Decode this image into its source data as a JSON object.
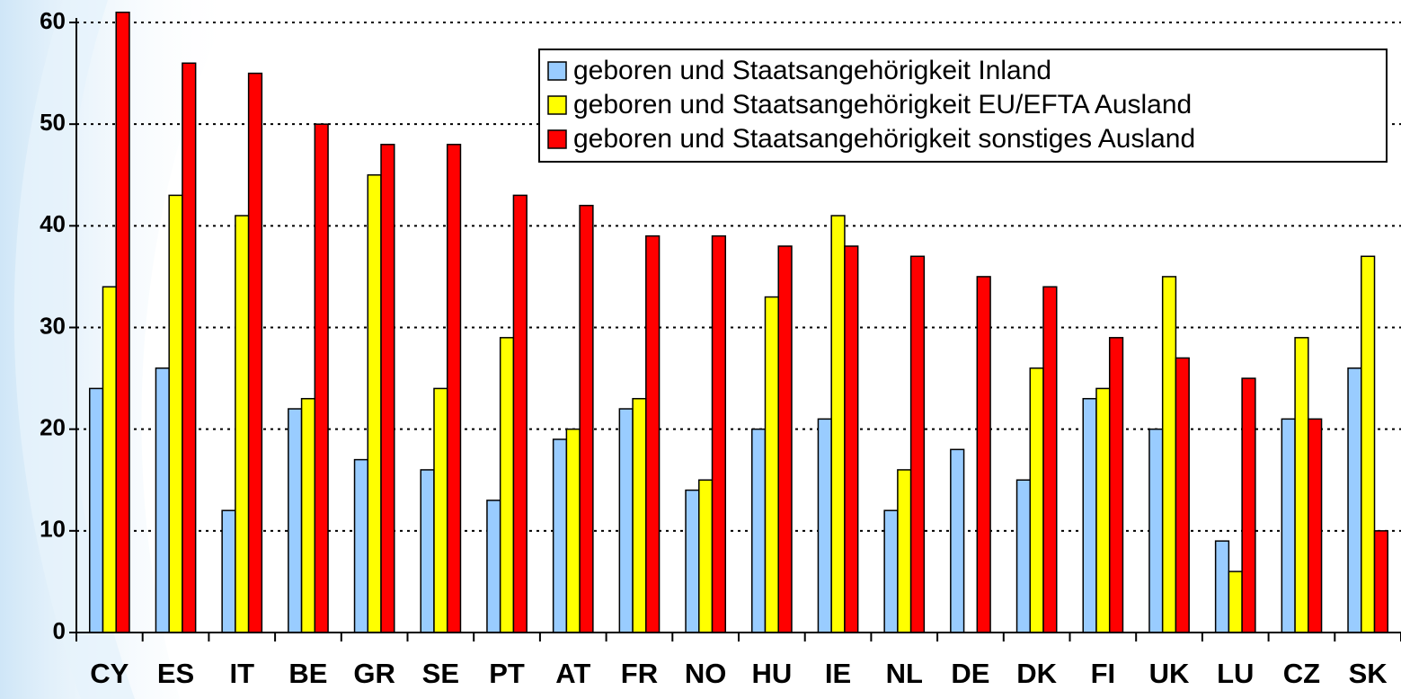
{
  "chart_data": {
    "type": "bar",
    "categories": [
      "CY",
      "ES",
      "IT",
      "BE",
      "GR",
      "SE",
      "PT",
      "AT",
      "FR",
      "NO",
      "HU",
      "IE",
      "NL",
      "DE",
      "DK",
      "FI",
      "UK",
      "LU",
      "CZ",
      "SK"
    ],
    "series": [
      {
        "name": "geboren und Staatsangehörigkeit Inland",
        "color": "#99ccff",
        "values": [
          24,
          26,
          12,
          22,
          17,
          16,
          13,
          19,
          22,
          14,
          20,
          21,
          12,
          18,
          15,
          23,
          20,
          9,
          21,
          26
        ]
      },
      {
        "name": "geboren und Staatsangehörigkeit EU/EFTA Ausland",
        "color": "#ffff00",
        "values": [
          34,
          43,
          41,
          23,
          45,
          24,
          29,
          20,
          23,
          15,
          33,
          41,
          16,
          null,
          26,
          24,
          35,
          6,
          29,
          37
        ]
      },
      {
        "name": "geboren und Staatsangehörigkeit  sonstiges Ausland",
        "color": "#ff0000",
        "values": [
          61,
          56,
          55,
          50,
          48,
          48,
          43,
          42,
          39,
          39,
          38,
          38,
          37,
          35,
          34,
          29,
          27,
          25,
          21,
          10
        ]
      }
    ],
    "ylim": [
      0,
      60
    ],
    "yticks": [
      0,
      10,
      20,
      30,
      40,
      50,
      60
    ],
    "grid": true,
    "legend": "top-right"
  }
}
